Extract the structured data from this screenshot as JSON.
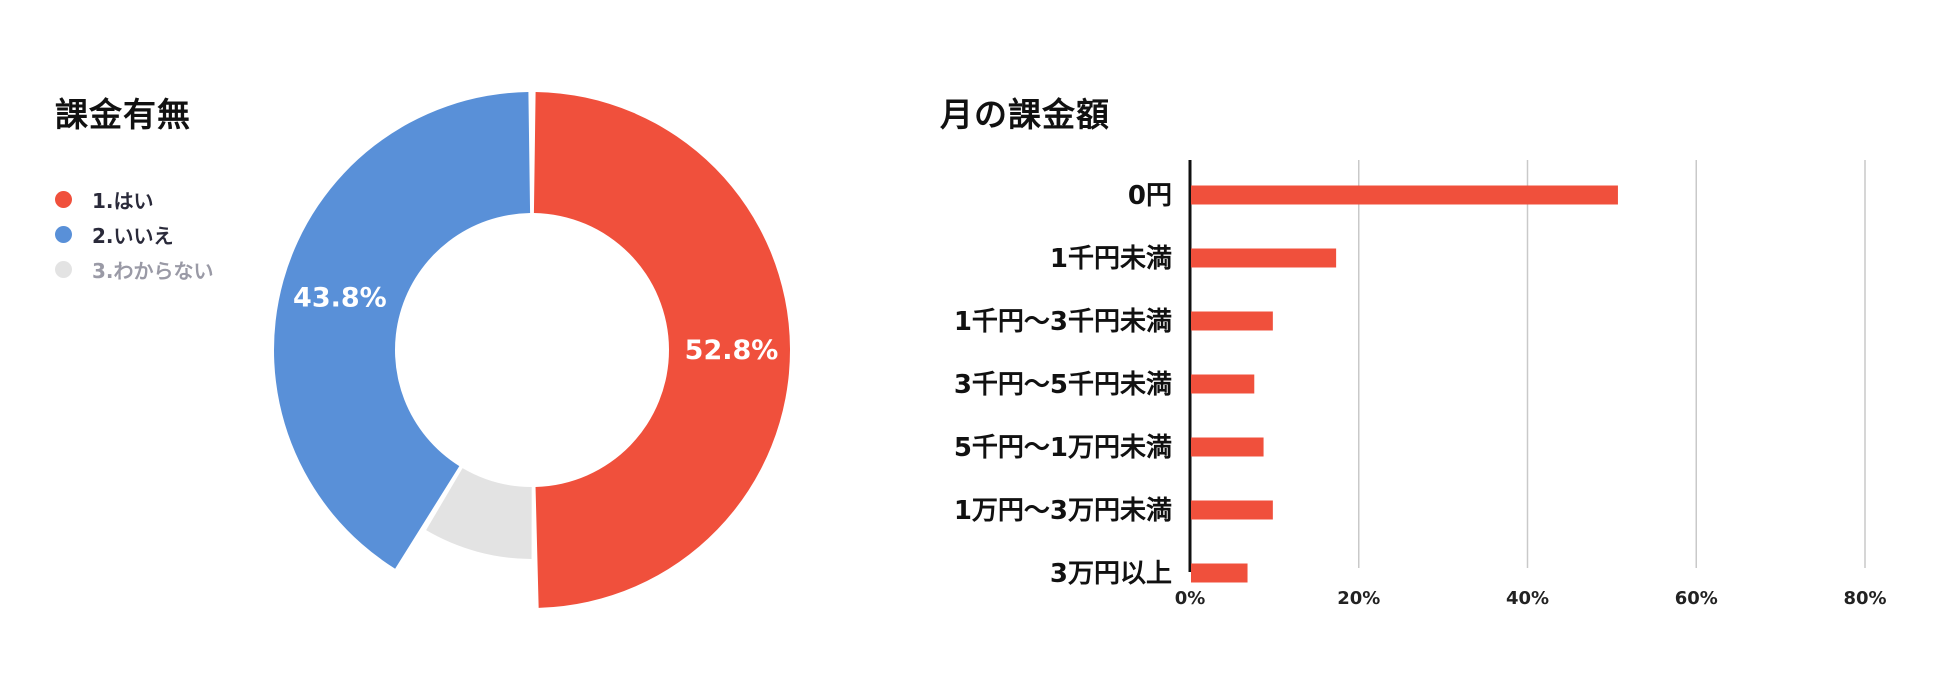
{
  "chart_data": [
    {
      "type": "pie",
      "title": "課金有無",
      "categories": [
        "1.はい",
        "2.いいえ",
        "3.わからない"
      ],
      "values": [
        52.8,
        43.8,
        9.4
      ],
      "value_labels": [
        "52.8%",
        "43.8%",
        ""
      ],
      "colors": [
        "#f0503c",
        "#5990d8",
        "#e3e3e3"
      ],
      "legend_text_colors": [
        "#2a2a3a",
        "#2a2a3a",
        "#9a9aa6"
      ],
      "legend_position": "left",
      "donut": true
    },
    {
      "type": "bar",
      "orientation": "horizontal",
      "title": "月の課金額",
      "categories": [
        "0円",
        "1千円未満",
        "1千円〜3千円未満",
        "3千円〜5千円未満",
        "5千円〜1万円未満",
        "1万円〜3万円未満",
        "3万円以上"
      ],
      "values": [
        50.6,
        17.2,
        9.7,
        7.5,
        8.6,
        9.7,
        6.7
      ],
      "xlim": [
        0,
        80
      ],
      "ticks": [
        0,
        20,
        40,
        60,
        80
      ],
      "tick_labels": [
        "0%",
        "20%",
        "40%",
        "60%",
        "80%"
      ],
      "grid": true,
      "color": "#f0503c"
    }
  ]
}
